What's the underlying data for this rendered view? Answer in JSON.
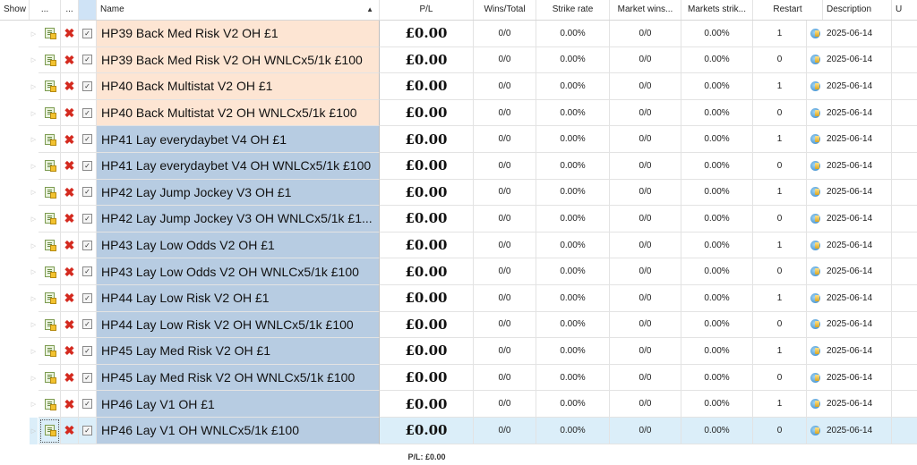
{
  "columns": {
    "show": "Show",
    "dots1": "...",
    "dots2": "...",
    "name": "Name",
    "pl": "P/L",
    "wins": "Wins/Total",
    "strike": "Strike rate",
    "market_wins": "Market wins...",
    "markets_strike": "Markets strik...",
    "restart": "Restart",
    "description": "Description",
    "u": "U"
  },
  "colors": {
    "orange_name": "#fde5d3",
    "blue_name": "#b7cce2",
    "focus_row": "#dbeef9"
  },
  "rows": [
    {
      "name": "HP39 Back Med Risk V2 OH £1",
      "pl": "£0.00",
      "wins": "0/0",
      "strike": "0.00%",
      "mw": "0/0",
      "ms": "0.00%",
      "restart": "1",
      "desc": "2025-06-14",
      "tone": "orange",
      "checked": true
    },
    {
      "name": "HP39 Back Med Risk V2 OH WNLCx5/1k £100",
      "pl": "£0.00",
      "wins": "0/0",
      "strike": "0.00%",
      "mw": "0/0",
      "ms": "0.00%",
      "restart": "0",
      "desc": "2025-06-14",
      "tone": "orange",
      "checked": true
    },
    {
      "name": "HP40 Back Multistat V2 OH £1",
      "pl": "£0.00",
      "wins": "0/0",
      "strike": "0.00%",
      "mw": "0/0",
      "ms": "0.00%",
      "restart": "1",
      "desc": "2025-06-14",
      "tone": "orange",
      "checked": true
    },
    {
      "name": "HP40 Back Multistat V2 OH WNLCx5/1k £100",
      "pl": "£0.00",
      "wins": "0/0",
      "strike": "0.00%",
      "mw": "0/0",
      "ms": "0.00%",
      "restart": "0",
      "desc": "2025-06-14",
      "tone": "orange",
      "checked": true
    },
    {
      "name": "HP41 Lay everydaybet V4 OH £1",
      "pl": "£0.00",
      "wins": "0/0",
      "strike": "0.00%",
      "mw": "0/0",
      "ms": "0.00%",
      "restart": "1",
      "desc": "2025-06-14",
      "tone": "blue",
      "checked": true
    },
    {
      "name": "HP41 Lay everydaybet V4 OH WNLCx5/1k £100",
      "pl": "£0.00",
      "wins": "0/0",
      "strike": "0.00%",
      "mw": "0/0",
      "ms": "0.00%",
      "restart": "0",
      "desc": "2025-06-14",
      "tone": "blue",
      "checked": true
    },
    {
      "name": "HP42 Lay Jump Jockey V3 OH £1",
      "pl": "£0.00",
      "wins": "0/0",
      "strike": "0.00%",
      "mw": "0/0",
      "ms": "0.00%",
      "restart": "1",
      "desc": "2025-06-14",
      "tone": "blue",
      "checked": true
    },
    {
      "name": "HP42 Lay Jump Jockey V3 OH WNLCx5/1k £1...",
      "pl": "£0.00",
      "wins": "0/0",
      "strike": "0.00%",
      "mw": "0/0",
      "ms": "0.00%",
      "restart": "0",
      "desc": "2025-06-14",
      "tone": "blue",
      "checked": true
    },
    {
      "name": "HP43 Lay Low Odds V2 OH £1",
      "pl": "£0.00",
      "wins": "0/0",
      "strike": "0.00%",
      "mw": "0/0",
      "ms": "0.00%",
      "restart": "1",
      "desc": "2025-06-14",
      "tone": "blue",
      "checked": true
    },
    {
      "name": "HP43 Lay Low Odds V2 OH WNLCx5/1k £100",
      "pl": "£0.00",
      "wins": "0/0",
      "strike": "0.00%",
      "mw": "0/0",
      "ms": "0.00%",
      "restart": "0",
      "desc": "2025-06-14",
      "tone": "blue",
      "checked": true
    },
    {
      "name": "HP44 Lay Low Risk V2 OH £1",
      "pl": "£0.00",
      "wins": "0/0",
      "strike": "0.00%",
      "mw": "0/0",
      "ms": "0.00%",
      "restart": "1",
      "desc": "2025-06-14",
      "tone": "blue",
      "checked": true
    },
    {
      "name": "HP44 Lay Low Risk V2 OH WNLCx5/1k £100",
      "pl": "£0.00",
      "wins": "0/0",
      "strike": "0.00%",
      "mw": "0/0",
      "ms": "0.00%",
      "restart": "0",
      "desc": "2025-06-14",
      "tone": "blue",
      "checked": true
    },
    {
      "name": "HP45 Lay Med Risk V2 OH £1",
      "pl": "£0.00",
      "wins": "0/0",
      "strike": "0.00%",
      "mw": "0/0",
      "ms": "0.00%",
      "restart": "1",
      "desc": "2025-06-14",
      "tone": "blue",
      "checked": true
    },
    {
      "name": "HP45 Lay Med Risk V2 OH WNLCx5/1k £100",
      "pl": "£0.00",
      "wins": "0/0",
      "strike": "0.00%",
      "mw": "0/0",
      "ms": "0.00%",
      "restart": "0",
      "desc": "2025-06-14",
      "tone": "blue",
      "checked": true
    },
    {
      "name": "HP46 Lay V1 OH £1",
      "pl": "£0.00",
      "wins": "0/0",
      "strike": "0.00%",
      "mw": "0/0",
      "ms": "0.00%",
      "restart": "1",
      "desc": "2025-06-14",
      "tone": "blue",
      "checked": true
    },
    {
      "name": "HP46 Lay V1 OH WNLCx5/1k £100",
      "pl": "£0.00",
      "wins": "0/0",
      "strike": "0.00%",
      "mw": "0/0",
      "ms": "0.00%",
      "restart": "0",
      "desc": "2025-06-14",
      "tone": "blue",
      "checked": true,
      "focused": true
    }
  ],
  "footer": {
    "total_pl": "P/L: £0.00"
  }
}
